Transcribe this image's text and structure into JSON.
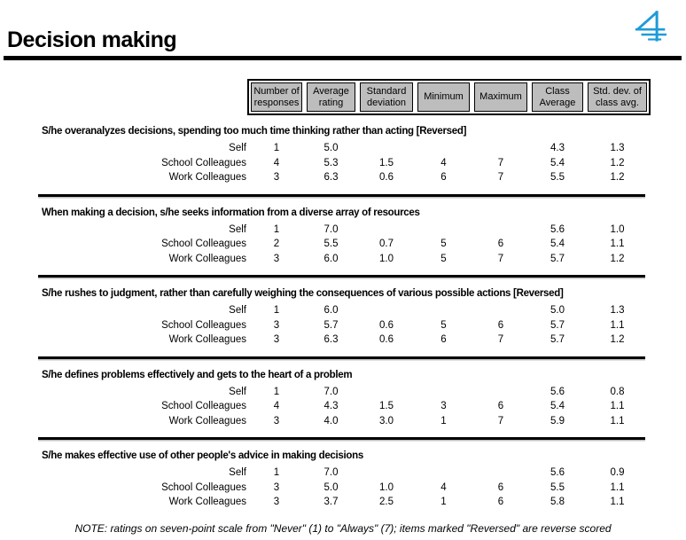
{
  "page": {
    "title": "Decision making",
    "note": "NOTE: ratings on seven-point scale from \"Never\" (1) to \"Always\" (7); items marked \"Reversed\" are reverse scored"
  },
  "colors": {
    "header_bg": "#bdbdbd",
    "logo_blue": "#1d9bd8",
    "text": "#000000",
    "rule": "#000000"
  },
  "table": {
    "columns": [
      {
        "label": "Number of responses",
        "lines": [
          "Number of",
          "responses"
        ]
      },
      {
        "label": "Average rating",
        "lines": [
          "Average",
          "rating"
        ]
      },
      {
        "label": "Standard deviation",
        "lines": [
          "Standard",
          "deviation"
        ]
      },
      {
        "label": "Minimum",
        "lines": [
          "Minimum"
        ]
      },
      {
        "label": "Maximum",
        "lines": [
          "Maximum"
        ]
      },
      {
        "label": "Class Average",
        "lines": [
          "Class",
          "Average"
        ]
      },
      {
        "label": "Std. dev. of class avg.",
        "lines": [
          "Std. dev. of",
          "class avg."
        ]
      }
    ],
    "sections": [
      {
        "heading": "S/he overanalyzes decisions, spending too much time thinking rather than acting [Reversed]",
        "rows": [
          {
            "label": "Self",
            "values": [
              "1",
              "5.0",
              "",
              "",
              "",
              "4.3",
              "1.3"
            ]
          },
          {
            "label": "School Colleagues",
            "values": [
              "4",
              "5.3",
              "1.5",
              "4",
              "7",
              "5.4",
              "1.2"
            ]
          },
          {
            "label": "Work Colleagues",
            "values": [
              "3",
              "6.3",
              "0.6",
              "6",
              "7",
              "5.5",
              "1.2"
            ]
          }
        ]
      },
      {
        "heading": "When making a decision, s/he seeks information from a diverse array of resources",
        "rows": [
          {
            "label": "Self",
            "values": [
              "1",
              "7.0",
              "",
              "",
              "",
              "5.6",
              "1.0"
            ]
          },
          {
            "label": "School Colleagues",
            "values": [
              "2",
              "5.5",
              "0.7",
              "5",
              "6",
              "5.4",
              "1.1"
            ]
          },
          {
            "label": "Work Colleagues",
            "values": [
              "3",
              "6.0",
              "1.0",
              "5",
              "7",
              "5.7",
              "1.2"
            ]
          }
        ]
      },
      {
        "heading": "S/he rushes to judgment, rather than carefully weighing the consequences of various possible actions [Reversed]",
        "rows": [
          {
            "label": "Self",
            "values": [
              "1",
              "6.0",
              "",
              "",
              "",
              "5.0",
              "1.3"
            ]
          },
          {
            "label": "School Colleagues",
            "values": [
              "3",
              "5.7",
              "0.6",
              "5",
              "6",
              "5.7",
              "1.1"
            ]
          },
          {
            "label": "Work Colleagues",
            "values": [
              "3",
              "6.3",
              "0.6",
              "6",
              "7",
              "5.7",
              "1.2"
            ]
          }
        ]
      },
      {
        "heading": "S/he defines problems effectively and gets to the heart of a problem",
        "rows": [
          {
            "label": "Self",
            "values": [
              "1",
              "7.0",
              "",
              "",
              "",
              "5.6",
              "0.8"
            ]
          },
          {
            "label": "School Colleagues",
            "values": [
              "4",
              "4.3",
              "1.5",
              "3",
              "6",
              "5.4",
              "1.1"
            ]
          },
          {
            "label": "Work Colleagues",
            "values": [
              "3",
              "4.0",
              "3.0",
              "1",
              "7",
              "5.9",
              "1.1"
            ]
          }
        ]
      },
      {
        "heading": "S/he makes effective use of other people's advice in making decisions",
        "rows": [
          {
            "label": "Self",
            "values": [
              "1",
              "7.0",
              "",
              "",
              "",
              "5.6",
              "0.9"
            ]
          },
          {
            "label": "School Colleagues",
            "values": [
              "3",
              "5.0",
              "1.0",
              "4",
              "6",
              "5.5",
              "1.1"
            ]
          },
          {
            "label": "Work Colleagues",
            "values": [
              "3",
              "3.7",
              "2.5",
              "1",
              "6",
              "5.8",
              "1.1"
            ]
          }
        ]
      }
    ]
  }
}
